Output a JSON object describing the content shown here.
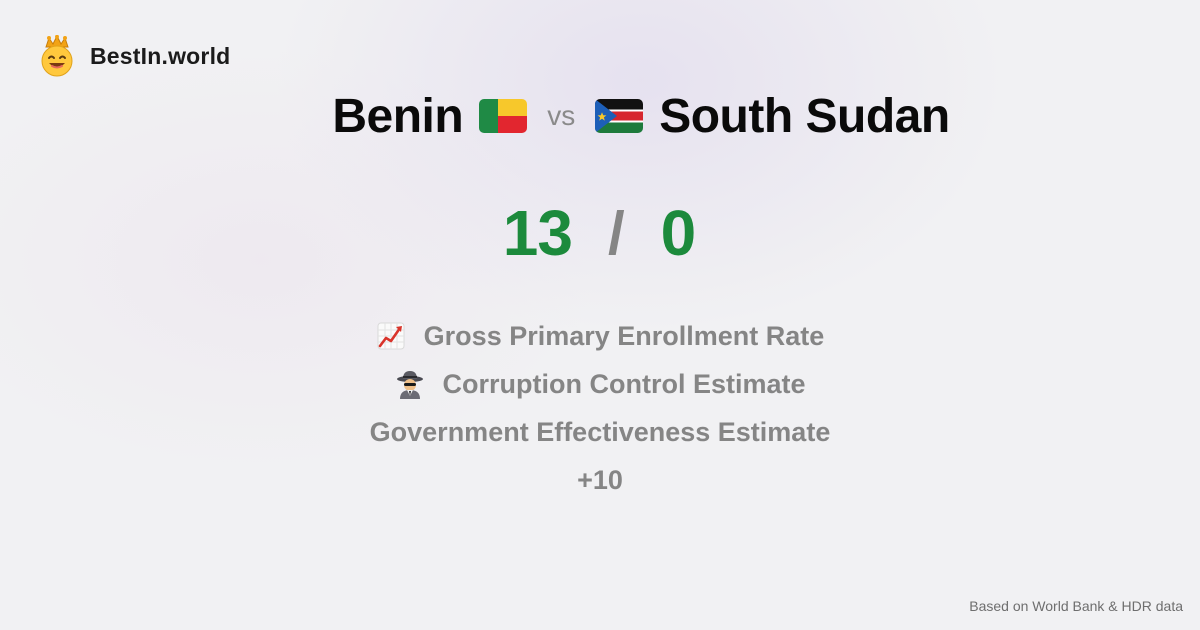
{
  "brand": {
    "name": "BestIn.world",
    "logo_icon": "crowned-smiley-icon"
  },
  "comparison": {
    "left": {
      "name": "Benin",
      "flag_icon": "benin-flag-icon",
      "score": "13"
    },
    "vs_label": "vs",
    "right": {
      "name": "South Sudan",
      "flag_icon": "south-sudan-flag-icon",
      "score": "0"
    },
    "score_separator": "/"
  },
  "metrics": [
    {
      "label": "Gross Primary Enrollment Rate",
      "icon": "chart-increasing-icon"
    },
    {
      "label": "Corruption Control Estimate",
      "icon": "detective-icon"
    },
    {
      "label": "Government Effectiveness Estimate",
      "icon": ""
    }
  ],
  "more_label": "+10",
  "footer": {
    "source_text": "Based on World Bank & HDR data"
  },
  "colors": {
    "score_green": "#1c8a3c",
    "muted_gray": "#858585",
    "background": "#f1f1f3"
  }
}
